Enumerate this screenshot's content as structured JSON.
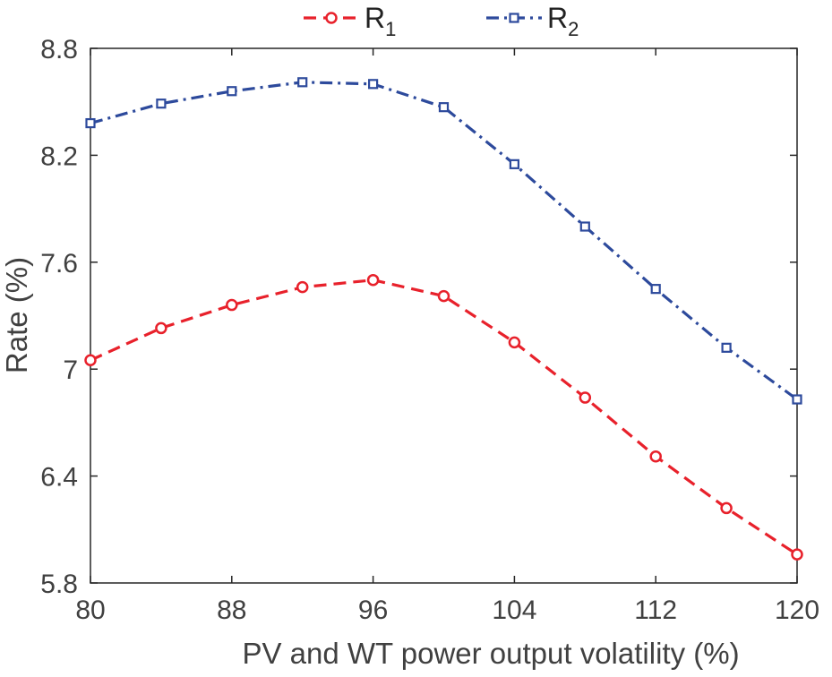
{
  "chart_data": {
    "type": "line",
    "title": "",
    "xlabel": "PV and WT power output volatility (%)",
    "ylabel": "Rate (%)",
    "xlim": [
      80,
      120
    ],
    "ylim": [
      5.8,
      8.8
    ],
    "xticks": [
      "80",
      "88",
      "96",
      "104",
      "112",
      "120"
    ],
    "yticks": [
      "5.8",
      "6.4",
      "7",
      "7.6",
      "8.2",
      "8.8"
    ],
    "legend_position": "top",
    "grid": false,
    "x": [
      80,
      84,
      88,
      92,
      96,
      100,
      104,
      108,
      112,
      116,
      120
    ],
    "series": [
      {
        "name": "R",
        "subscript": "1",
        "color": "#e8212b",
        "marker": "circle",
        "line_style": "dashed",
        "values": [
          7.05,
          7.23,
          7.36,
          7.46,
          7.5,
          7.41,
          7.15,
          6.84,
          6.51,
          6.22,
          5.96
        ]
      },
      {
        "name": "R",
        "subscript": "2",
        "color": "#2d4a9c",
        "marker": "square",
        "line_style": "dashdot",
        "values": [
          8.38,
          8.49,
          8.56,
          8.61,
          8.6,
          8.47,
          8.15,
          7.8,
          7.45,
          7.12,
          6.83
        ]
      }
    ]
  }
}
